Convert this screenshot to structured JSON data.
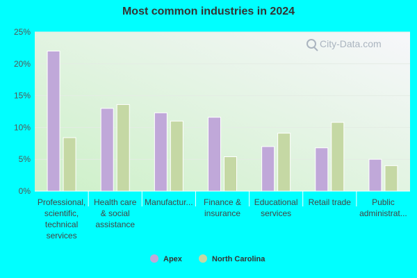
{
  "chart_data": {
    "type": "bar",
    "title": "Most common industries in 2024",
    "categories": [
      [
        "Professional,",
        "scientific,",
        "technical",
        "services"
      ],
      [
        "Health care",
        "& social",
        "assistance"
      ],
      [
        "Manufactur..."
      ],
      [
        "Finance &",
        "insurance"
      ],
      [
        "Educational",
        "services"
      ],
      [
        "Retail trade"
      ],
      [
        "Public",
        "administrat..."
      ]
    ],
    "series": [
      {
        "name": "Apex",
        "color": "#c0a8d9",
        "values": [
          22.0,
          13.0,
          12.3,
          11.6,
          7.0,
          6.8,
          5.0
        ]
      },
      {
        "name": "North Carolina",
        "color": "#c5d8a4",
        "values": [
          8.4,
          13.6,
          11.0,
          5.4,
          9.1,
          10.8,
          4.0
        ]
      }
    ],
    "ylim": [
      0,
      25
    ],
    "yticks": [
      "0%",
      "5%",
      "10%",
      "15%",
      "20%",
      "25%"
    ],
    "grid": true,
    "legend": "bottom-center"
  },
  "watermark": "City-Data.com"
}
